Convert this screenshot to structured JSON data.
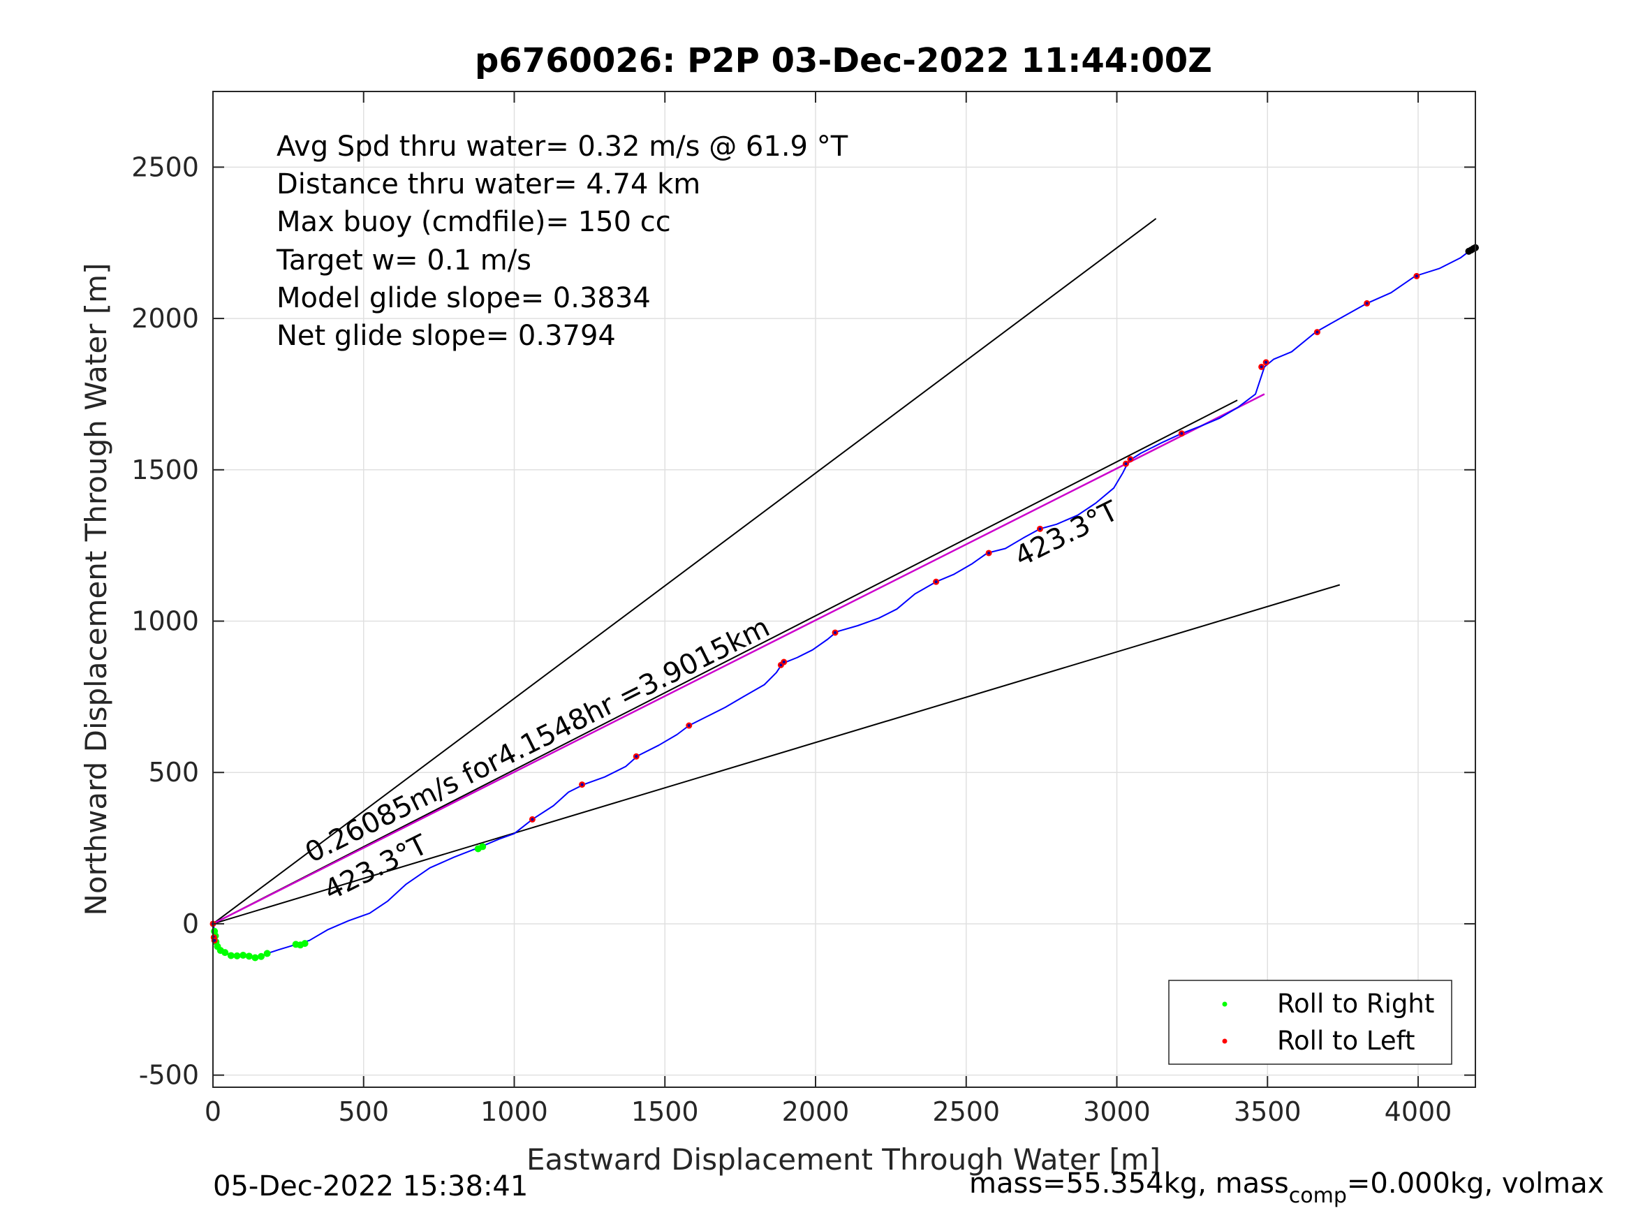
{
  "chart_data": {
    "type": "line",
    "title": "p6760026: P2P 03-Dec-2022 11:44:00Z",
    "xlabel": "Eastward Displacement Through Water [m]",
    "ylabel": "Northward Displacement Through Water [m]",
    "xlim": [
      0,
      4190
    ],
    "ylim": [
      -540,
      2750
    ],
    "xticks": [
      0,
      500,
      1000,
      1500,
      2000,
      2500,
      3000,
      3500,
      4000
    ],
    "xtick_labels": [
      "0",
      "500",
      "1000",
      "1500",
      "2000",
      "2500",
      "3000",
      "3500",
      "4000"
    ],
    "yticks": [
      -500,
      0,
      500,
      1000,
      1500,
      2000,
      2500
    ],
    "ytick_labels": [
      "-500",
      "0",
      "500",
      "1000",
      "1500",
      "2000",
      "2500"
    ],
    "grid": true,
    "legend_position": "bottom-right",
    "info_lines": [
      "Avg Spd thru water=  0.32 m/s @  61.9 °T",
      "Distance thru water=  4.74 km",
      "Max buoy (cmdfile)= 150 cc",
      "Target w= 0.1 m/s",
      "Model glide slope= 0.3834",
      "Net glide slope= 0.3794"
    ],
    "annotations": {
      "speed_label": "0.26085m/s for4.1548hr =3.9015km",
      "heading_label_lower": "423.3°T",
      "heading_label_upper": "423.3°T"
    },
    "footer_left": "05-Dec-2022 15:38:41",
    "footer_right_parts": [
      "mass=55.354kg, mass",
      "comp",
      "=0.000kg, volmax"
    ],
    "colors": {
      "track": "#0000ff",
      "fit_line": "#cc00cc",
      "reference_lines": "#000000",
      "roll_right": "#00ff00",
      "roll_left": "#ff0000",
      "grid": "#e0e0e0",
      "end_marker": "#000000"
    },
    "series": [
      {
        "name": "track",
        "points": [
          [
            0,
            0
          ],
          [
            5,
            -20
          ],
          [
            5,
            -45
          ],
          [
            5,
            -65
          ],
          [
            25,
            -90
          ],
          [
            60,
            -105
          ],
          [
            110,
            -107
          ],
          [
            150,
            -112
          ],
          [
            180,
            -98
          ],
          [
            220,
            -85
          ],
          [
            270,
            -70
          ],
          [
            320,
            -55
          ],
          [
            380,
            -20
          ],
          [
            450,
            10
          ],
          [
            520,
            35
          ],
          [
            580,
            75
          ],
          [
            640,
            130
          ],
          [
            720,
            185
          ],
          [
            800,
            220
          ],
          [
            890,
            255
          ],
          [
            950,
            280
          ],
          [
            1000,
            298
          ],
          [
            1060,
            345
          ],
          [
            1130,
            390
          ],
          [
            1180,
            435
          ],
          [
            1230,
            460
          ],
          [
            1300,
            485
          ],
          [
            1370,
            520
          ],
          [
            1410,
            555
          ],
          [
            1480,
            590
          ],
          [
            1540,
            625
          ],
          [
            1580,
            655
          ],
          [
            1640,
            685
          ],
          [
            1700,
            715
          ],
          [
            1760,
            750
          ],
          [
            1830,
            790
          ],
          [
            1870,
            830
          ],
          [
            1890,
            860
          ],
          [
            1940,
            880
          ],
          [
            1990,
            905
          ],
          [
            2040,
            940
          ],
          [
            2070,
            965
          ],
          [
            2140,
            985
          ],
          [
            2210,
            1010
          ],
          [
            2270,
            1040
          ],
          [
            2330,
            1090
          ],
          [
            2400,
            1130
          ],
          [
            2460,
            1155
          ],
          [
            2520,
            1190
          ],
          [
            2570,
            1225
          ],
          [
            2630,
            1240
          ],
          [
            2690,
            1275
          ],
          [
            2745,
            1305
          ],
          [
            2800,
            1320
          ],
          [
            2870,
            1350
          ],
          [
            2930,
            1390
          ],
          [
            2990,
            1440
          ],
          [
            3020,
            1490
          ],
          [
            3040,
            1530
          ],
          [
            3080,
            1555
          ],
          [
            3150,
            1590
          ],
          [
            3215,
            1620
          ],
          [
            3280,
            1645
          ],
          [
            3340,
            1670
          ],
          [
            3400,
            1705
          ],
          [
            3460,
            1750
          ],
          [
            3490,
            1840
          ],
          [
            3520,
            1865
          ],
          [
            3580,
            1890
          ],
          [
            3660,
            1955
          ],
          [
            3740,
            2000
          ],
          [
            3830,
            2050
          ],
          [
            3910,
            2085
          ],
          [
            3990,
            2140
          ],
          [
            4070,
            2165
          ],
          [
            4140,
            2200
          ],
          [
            4180,
            2230
          ]
        ]
      },
      {
        "name": "Roll to Right",
        "points": [
          [
            5,
            -25
          ],
          [
            8,
            -40
          ],
          [
            10,
            -60
          ],
          [
            15,
            -75
          ],
          [
            25,
            -88
          ],
          [
            40,
            -95
          ],
          [
            60,
            -105
          ],
          [
            80,
            -106
          ],
          [
            100,
            -104
          ],
          [
            120,
            -107
          ],
          [
            140,
            -112
          ],
          [
            160,
            -108
          ],
          [
            180,
            -98
          ],
          [
            275,
            -68
          ],
          [
            290,
            -70
          ],
          [
            305,
            -65
          ],
          [
            880,
            248
          ],
          [
            895,
            255
          ]
        ]
      },
      {
        "name": "Roll to Left",
        "points": [
          [
            0,
            0
          ],
          [
            3,
            -45
          ],
          [
            5,
            -55
          ],
          [
            1060,
            345
          ],
          [
            1225,
            460
          ],
          [
            1405,
            553
          ],
          [
            1580,
            655
          ],
          [
            1885,
            855
          ],
          [
            1895,
            865
          ],
          [
            2065,
            962
          ],
          [
            2400,
            1130
          ],
          [
            2575,
            1225
          ],
          [
            2745,
            1305
          ],
          [
            3030,
            1520
          ],
          [
            3045,
            1535
          ],
          [
            3215,
            1620
          ],
          [
            3480,
            1840
          ],
          [
            3495,
            1855
          ],
          [
            3665,
            1955
          ],
          [
            3830,
            2050
          ],
          [
            3995,
            2140
          ]
        ]
      },
      {
        "name": "fit_line",
        "points": [
          [
            0,
            0
          ],
          [
            3490,
            1750
          ]
        ]
      },
      {
        "name": "reference_upper",
        "points": [
          [
            0,
            0
          ],
          [
            3130,
            2330
          ]
        ]
      },
      {
        "name": "reference_mid",
        "points": [
          [
            0,
            0
          ],
          [
            3400,
            1730
          ]
        ]
      },
      {
        "name": "reference_lower",
        "points": [
          [
            0,
            0
          ],
          [
            3740,
            1120
          ]
        ]
      },
      {
        "name": "end_marker",
        "points": [
          [
            4168,
            2222
          ],
          [
            4176,
            2226
          ],
          [
            4184,
            2231
          ],
          [
            4190,
            2234
          ]
        ]
      }
    ],
    "legend": [
      {
        "label": "Roll to Right",
        "color": "#00ff00"
      },
      {
        "label": "Roll to Left",
        "color": "#ff0000"
      }
    ]
  }
}
